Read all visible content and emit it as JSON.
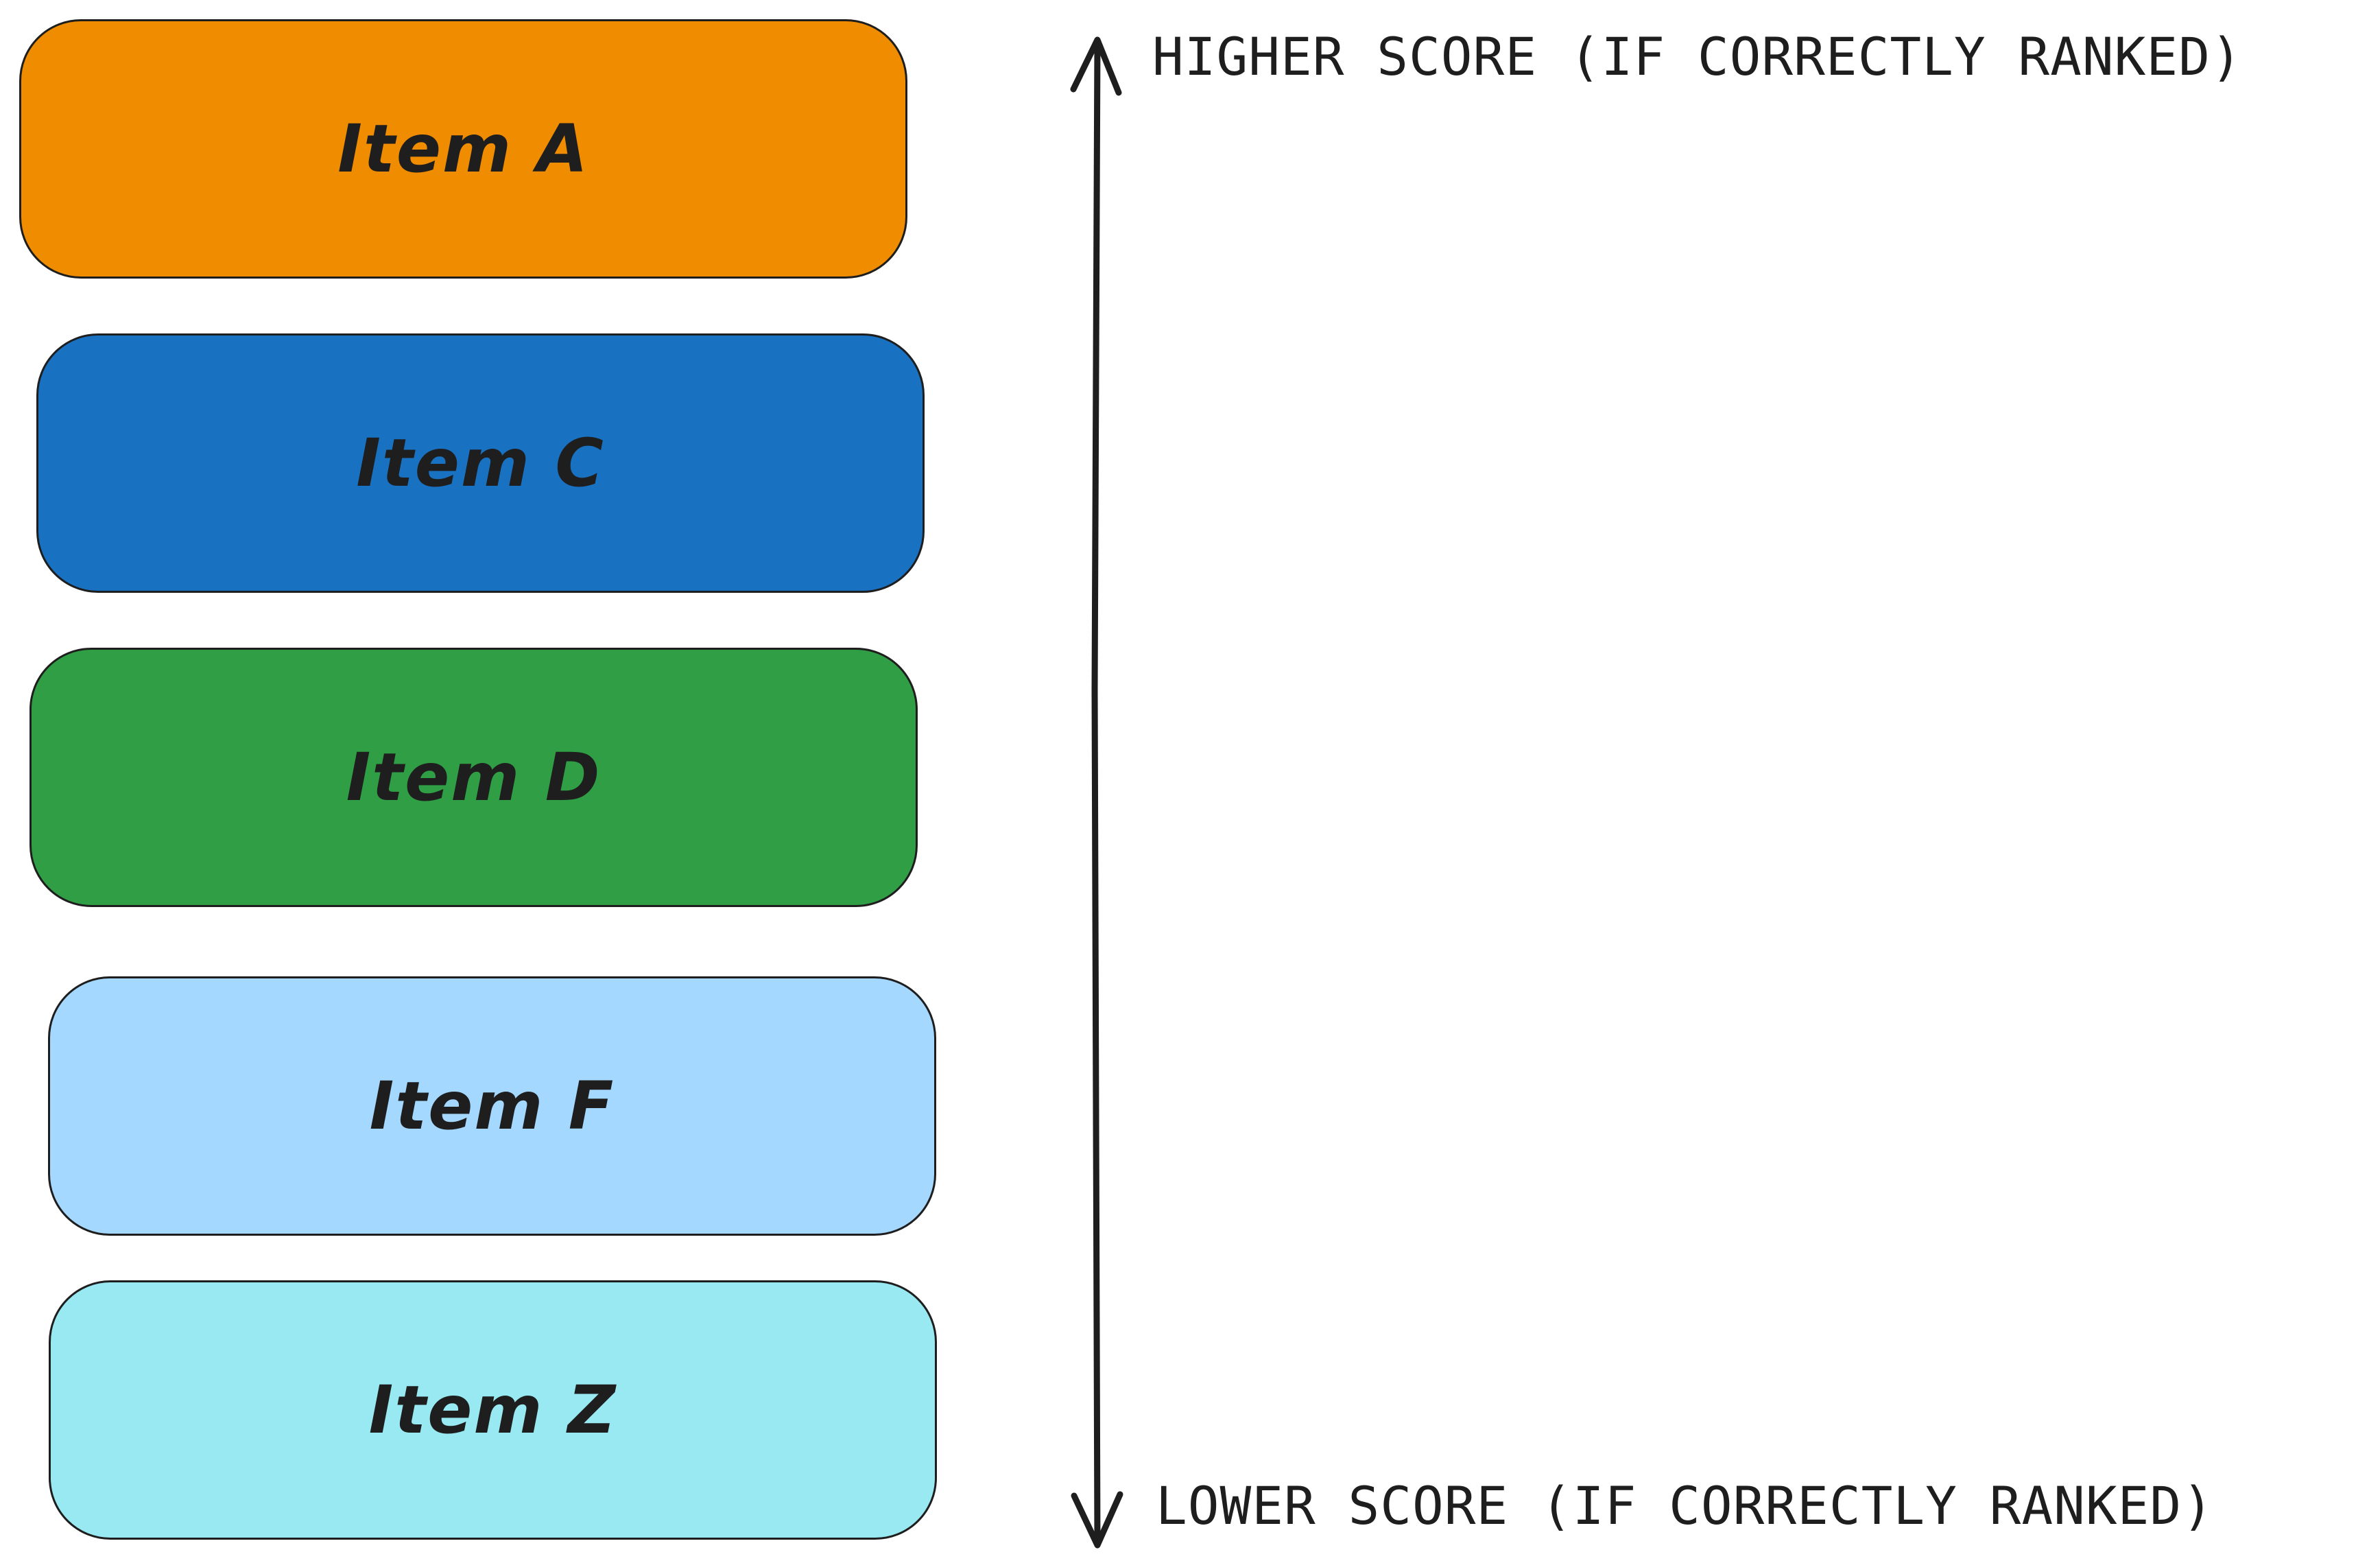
{
  "colors": {
    "stroke": "#1e1e1e",
    "item_a": "#f08c00",
    "item_c": "#1971c2",
    "item_d": "#2f9e44",
    "item_f": "#a5d8ff",
    "item_z": "#99e9f2"
  },
  "items": [
    {
      "label": "Item A",
      "color": "#f08c00"
    },
    {
      "label": "Item C",
      "color": "#1971c2"
    },
    {
      "label": "Item D",
      "color": "#2f9e44"
    },
    {
      "label": "Item F",
      "color": "#a5d8ff"
    },
    {
      "label": "Item Z",
      "color": "#99e9f2"
    }
  ],
  "axis": {
    "top_label": "HIGHER SCORE (IF CORRECTLY RANKED)",
    "bottom_label": "LOWER SCORE (IF CORRECTLY RANKED)",
    "arrow_icon": "double-headed-vertical-arrow"
  }
}
